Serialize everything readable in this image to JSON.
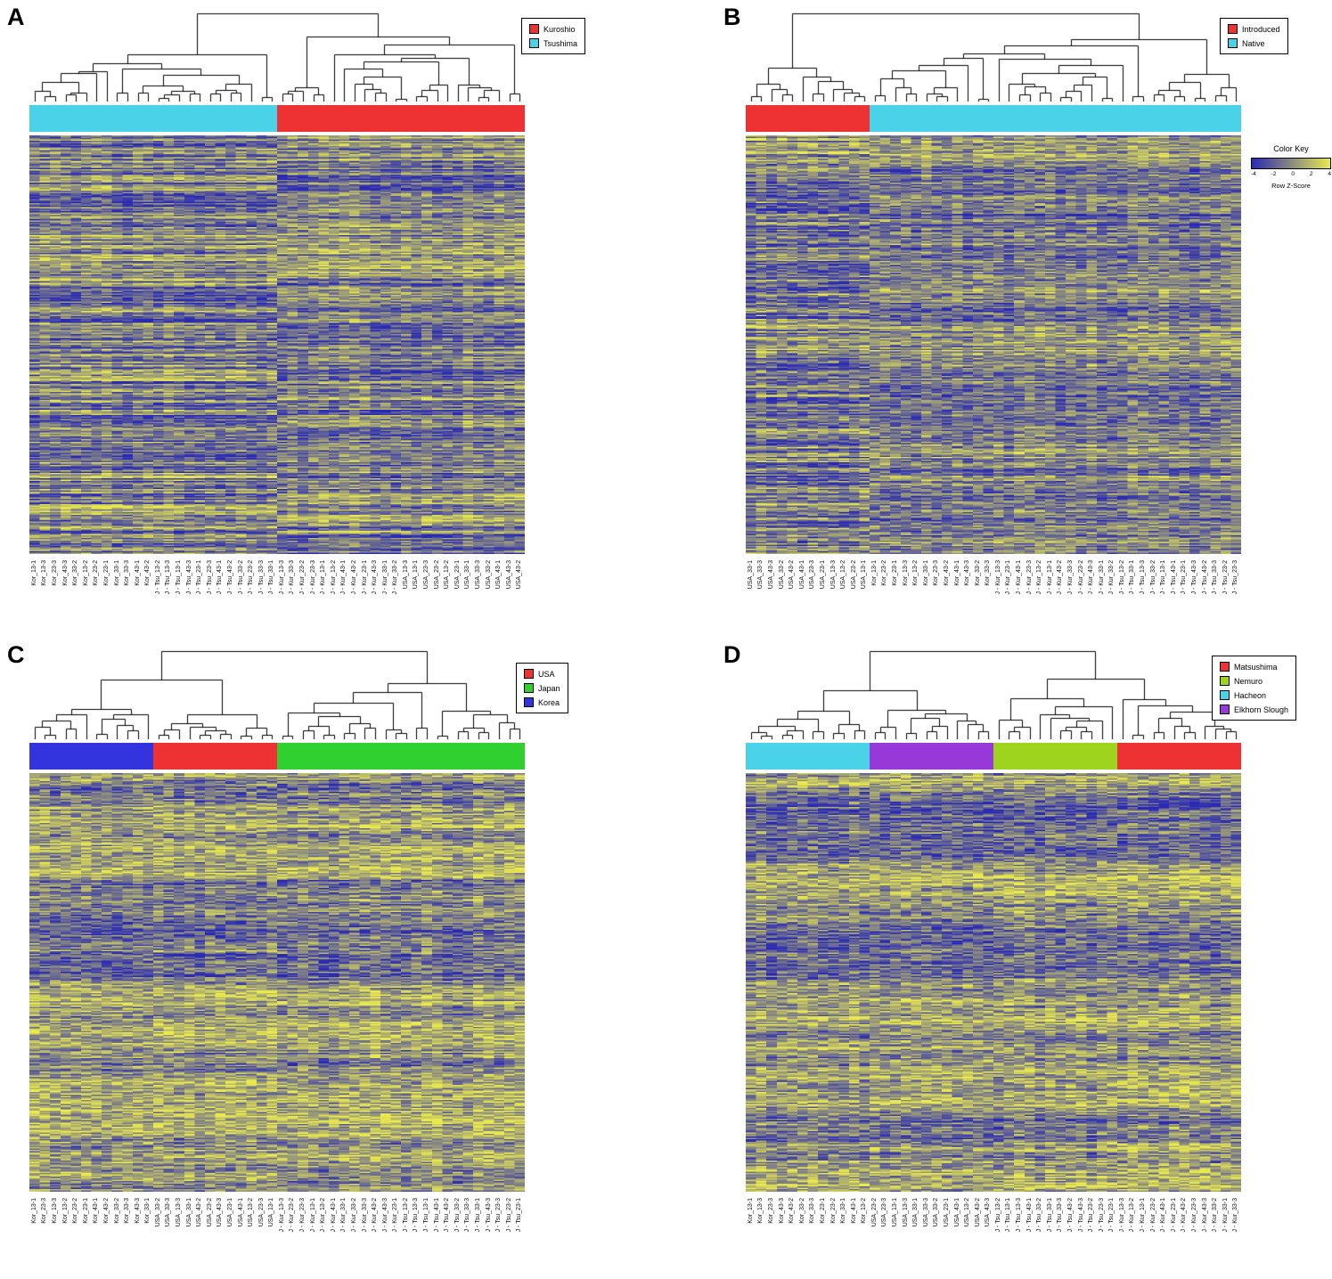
{
  "figure": {
    "background": "#ffffff"
  },
  "colormap": {
    "low": "#2A2AB4",
    "high": "#E9E94F"
  },
  "color_key": {
    "title": "Color Key",
    "label": "Row Z-Score",
    "ticks": [
      "-4",
      "-2",
      "0",
      "2",
      "4"
    ]
  },
  "chart_data": [
    {
      "type": "heatmap",
      "panel": "A",
      "value_scale": {
        "label": "Row Z-Score",
        "min": -4,
        "max": 4
      },
      "legend": [
        {
          "label": "Kuroshio",
          "color": "#EE3233"
        },
        {
          "label": "Tsushima",
          "color": "#4AD2E9"
        }
      ],
      "column_groups": [
        {
          "name": "Tsushima",
          "color": "#4AD2E9",
          "count": 24
        },
        {
          "name": "Kuroshio",
          "color": "#EE3233",
          "count": 24
        }
      ],
      "columns": [
        "Kor_13-1",
        "Kor_13-3",
        "Kor_23-3",
        "Kor_43-3",
        "Kor_33-2",
        "Kor_13-2",
        "Kor_23-2",
        "Kor_23-1",
        "Kor_33-1",
        "Kor_33-3",
        "Kor_43-1",
        "Kor_43-2",
        "J - Tsu_13-2",
        "J - Tsu_13-3",
        "J - Tsu_13-1",
        "J - Tsu_43-3",
        "J - Tsu_23-1",
        "J - Tsu_23-3",
        "J - Tsu_43-1",
        "J - Tsu_43-2",
        "J - Tsu_33-2",
        "J - Tsu_23-2",
        "J - Tsu_33-3",
        "J - Tsu_33-1",
        "J - Kur_13-3",
        "J - Kur_33-3",
        "J - Kur_23-2",
        "J - Kur_23-3",
        "J - Kur_13-1",
        "J - Kur_13-2",
        "J - Kur_43-1",
        "J - Kur_43-2",
        "J - Kur_23-1",
        "J - Kur_43-3",
        "J - Kur_33-1",
        "J - Kur_33-2",
        "USA_13-3",
        "USA_13-1",
        "USA_23-3",
        "USA_23-2",
        "USA_13-2",
        "USA_23-1",
        "USA_33-1",
        "USA_33-3",
        "USA_33-2",
        "USA_43-1",
        "USA_43-3",
        "USA_43-2"
      ],
      "render": {
        "seed": 101,
        "mode": "two",
        "wRow": 0.25,
        "wGroup": 0.75,
        "wNoise": 0.55
      }
    },
    {
      "type": "heatmap",
      "panel": "B",
      "value_scale": {
        "label": "Row Z-Score",
        "min": -4,
        "max": 4
      },
      "legend": [
        {
          "label": "Introduced",
          "color": "#EE3233"
        },
        {
          "label": "Native",
          "color": "#4AD2E9"
        }
      ],
      "column_groups": [
        {
          "name": "Introduced",
          "color": "#EE3233",
          "count": 12
        },
        {
          "name": "Native",
          "color": "#4AD2E9",
          "count": 36
        }
      ],
      "columns": [
        "USA_33-1",
        "USA_33-3",
        "USA_43-3",
        "USA_33-2",
        "USA_43-2",
        "USA_43-1",
        "USA_23-3",
        "USA_23-1",
        "USA_13-3",
        "USA_13-2",
        "USA_23-2",
        "USA_13-1",
        "Kor_13-1",
        "Kor_23-2",
        "Kor_23-1",
        "Kor_13-3",
        "Kor_13-2",
        "Kor_33-1",
        "Kor_23-3",
        "Kor_43-2",
        "Kor_43-1",
        "Kor_43-3",
        "Kor_33-2",
        "Kor_33-3",
        "J - Kur_13-3",
        "J - Kur_23-1",
        "J - Kur_43-1",
        "J - Kur_23-3",
        "J - Kur_13-2",
        "J - Kur_13-1",
        "J - Kur_43-2",
        "J - Kur_33-3",
        "J - Kur_23-2",
        "J - Kur_43-3",
        "J - Kur_33-1",
        "J - Kur_33-2",
        "J - Tsu_13-2",
        "J - Tsu_33-1",
        "J - Tsu_13-3",
        "J - Tsu_33-2",
        "J - Tsu_13-1",
        "J - Tsu_43-1",
        "J - Tsu_23-1",
        "J - Tsu_43-3",
        "J - Tsu_43-2",
        "J - Tsu_33-3",
        "J - Tsu_23-2",
        "J - Tsu_23-3"
      ],
      "render": {
        "seed": 202,
        "mode": "first",
        "wRow": 0.3,
        "wGroup": 0.65,
        "wNoise": 0.6
      }
    },
    {
      "type": "heatmap",
      "panel": "C",
      "value_scale": {
        "label": "Row Z-Score",
        "min": -4,
        "max": 4
      },
      "legend": [
        {
          "label": "USA",
          "color": "#EE3233"
        },
        {
          "label": "Japan",
          "color": "#2FD02F"
        },
        {
          "label": "Korea",
          "color": "#3434DF"
        }
      ],
      "column_groups": [
        {
          "name": "Korea",
          "color": "#3434DF",
          "count": 12
        },
        {
          "name": "USA",
          "color": "#EE3233",
          "count": 12
        },
        {
          "name": "Japan",
          "color": "#2FD02F",
          "count": 24
        }
      ],
      "columns": [
        "Kor_13-1",
        "Kor_23-3",
        "Kor_13-3",
        "Kor_13-2",
        "Kor_23-2",
        "Kor_23-1",
        "Kor_43-1",
        "Kor_43-2",
        "Kor_33-2",
        "Kor_33-3",
        "Kor_43-3",
        "Kor_33-1",
        "USA_33-2",
        "USA_33-3",
        "USA_13-3",
        "USA_33-1",
        "USA_43-2",
        "USA_23-2",
        "USA_43-3",
        "USA_23-1",
        "USA_43-1",
        "USA_13-2",
        "USA_23-3",
        "USA_13-1",
        "J - Kur_13-3",
        "J - Kur_23-2",
        "J - Kur_23-3",
        "J - Kur_13-1",
        "J - Kur_13-2",
        "J - Kur_43-1",
        "J - Kur_33-1",
        "J - Kur_33-2",
        "J - Kur_33-3",
        "J - Kur_43-2",
        "J - Kur_43-3",
        "J - Kur_23-1",
        "J - Tsu_13-2",
        "J - Tsu_13-3",
        "J - Tsu_13-1",
        "J - Tsu_43-1",
        "J - Tsu_43-2",
        "J - Tsu_33-2",
        "J - Tsu_33-3",
        "J - Tsu_33-1",
        "J - Tsu_43-3",
        "J - Tsu_23-3",
        "J - Tsu_23-2",
        "J - Tsu_23-1"
      ],
      "render": {
        "seed": 303,
        "mode": "mild",
        "wRow": 0.45,
        "wGroup": 0.35,
        "wNoise": 0.65
      }
    },
    {
      "type": "heatmap",
      "panel": "D",
      "value_scale": {
        "label": "Row Z-Score",
        "min": -4,
        "max": 4
      },
      "legend": [
        {
          "label": "Matsushima",
          "color": "#EE3233"
        },
        {
          "label": "Nemuro",
          "color": "#9FD41E"
        },
        {
          "label": "Hacheon",
          "color": "#4AD2E9"
        },
        {
          "label": "Elkhorn Slough",
          "color": "#9739D9"
        }
      ],
      "column_groups": [
        {
          "name": "Hacheon",
          "color": "#4AD2E9",
          "count": 12
        },
        {
          "name": "Elkhorn Slough",
          "color": "#9739D9",
          "count": 12
        },
        {
          "name": "Nemuro",
          "color": "#9FD41E",
          "count": 12
        },
        {
          "name": "Matsushima",
          "color": "#EE3233",
          "count": 12
        }
      ],
      "columns": [
        "Kor_13-1",
        "Kor_13-3",
        "Kor_23-3",
        "Kor_43-3",
        "Kor_43-2",
        "Kor_33-2",
        "Kor_33-3",
        "Kor_23-1",
        "Kor_23-2",
        "Kor_33-1",
        "Kor_43-1",
        "Kor_13-2",
        "USA_23-2",
        "USA_23-3",
        "USA_13-1",
        "USA_13-3",
        "USA_33-1",
        "USA_33-3",
        "USA_33-2",
        "USA_23-1",
        "USA_43-1",
        "USA_13-2",
        "USA_43-2",
        "USA_43-3",
        "J - Tsu_13-2",
        "J - Tsu_13-1",
        "J - Tsu_13-3",
        "J - Tsu_43-1",
        "J - Tsu_33-2",
        "J - Tsu_33-1",
        "J - Tsu_33-3",
        "J - Tsu_43-2",
        "J - Tsu_43-3",
        "J - Tsu_23-2",
        "J - Tsu_23-3",
        "J - Tsu_23-1",
        "J - Kur_13-3",
        "J - Kur_13-2",
        "J - Kur_13-1",
        "J - Kur_23-2",
        "J - Kur_43-1",
        "J - Kur_23-1",
        "J - Kur_43-2",
        "J - Kur_23-3",
        "J - Kur_43-3",
        "J - Kur_33-2",
        "J - Kur_33-1",
        "J - Kur_33-3"
      ],
      "render": {
        "seed": 404,
        "mode": "mild",
        "wRow": 0.45,
        "wGroup": 0.35,
        "wNoise": 0.65
      }
    }
  ]
}
